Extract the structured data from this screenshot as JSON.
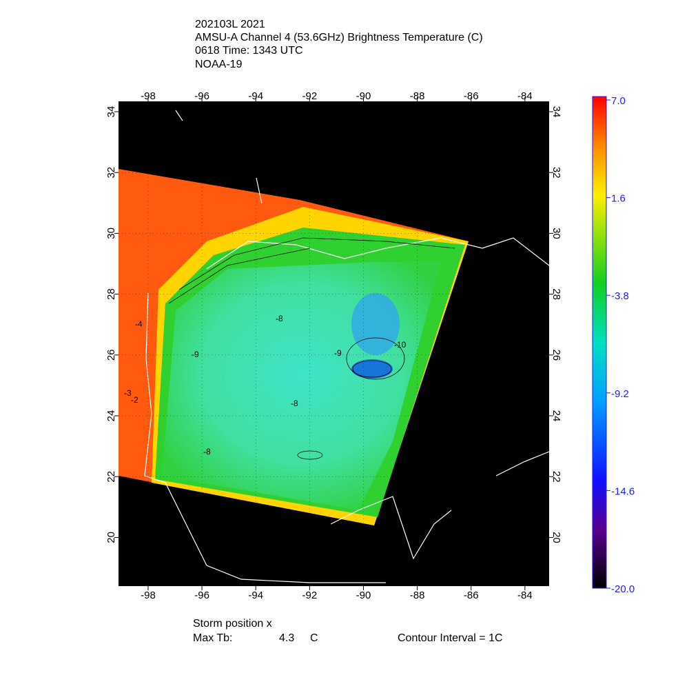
{
  "title": [
    "202103L 2021",
    "AMSU-A Channel 4 (53.6GHz) Brightness Temperature (C)",
    "0618 Time: 1343 UTC",
    "NOAA-19"
  ],
  "map": {
    "xlim": [
      -99.1,
      -83.1
    ],
    "ylim": [
      18.4,
      34.34
    ],
    "xticks": [
      -98,
      -96,
      -94,
      -92,
      -90,
      -88,
      -86,
      -84
    ],
    "yticks": [
      20,
      22,
      24,
      26,
      28,
      30,
      32,
      34
    ],
    "contour_labels": [
      "-8",
      "-9",
      "-8",
      "-8",
      "-9",
      "-10",
      "-3",
      "-2",
      "-4"
    ]
  },
  "colorbar": {
    "lim": [
      -20,
      7
    ],
    "ticks": [
      {
        "value": 7,
        "label": "7.0"
      },
      {
        "value": 1.6,
        "label": "1.6"
      },
      {
        "value": -3.8,
        "label": "-3.8"
      },
      {
        "value": -9.2,
        "label": "-9.2"
      },
      {
        "value": -14.6,
        "label": "-14.6"
      },
      {
        "value": -20,
        "label": "-20.0"
      }
    ]
  },
  "footer": {
    "storm_position": "Storm position x",
    "max_tb_label": "Max Tb:",
    "max_tb_value": "4.3",
    "max_tb_unit": "C",
    "contour_interval": "Contour Interval = 1C"
  }
}
